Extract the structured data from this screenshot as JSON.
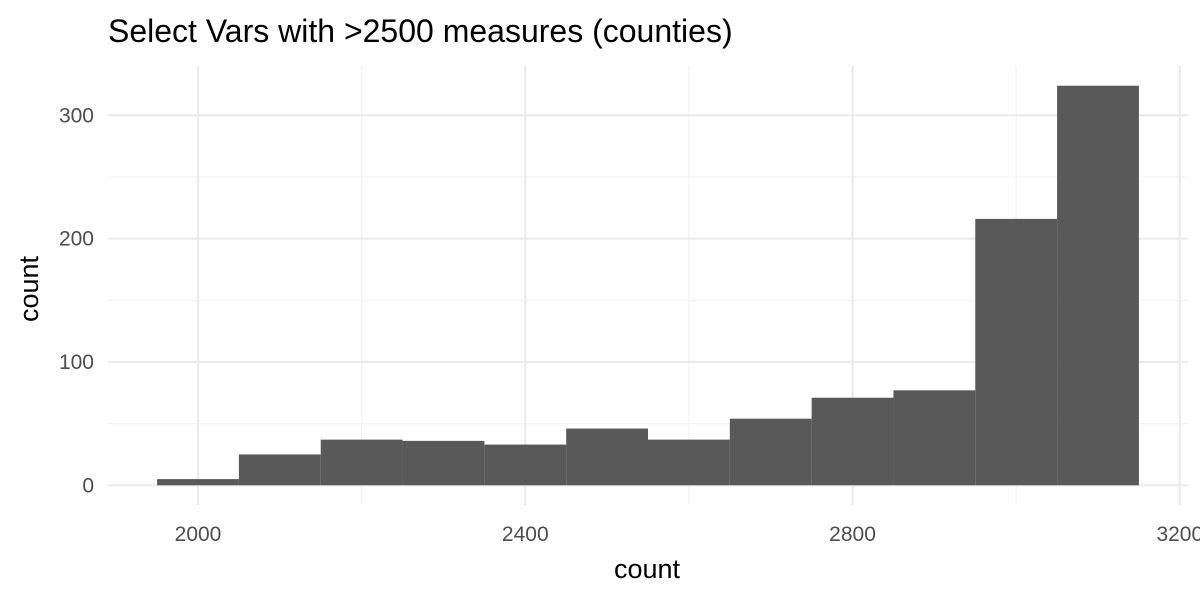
{
  "chart_data": {
    "type": "bar",
    "title": "Select Vars with >2500 measures (counties)",
    "xlabel": "count",
    "ylabel": "count",
    "bin_width": 100,
    "bins": [
      {
        "x0": 1950,
        "x1": 2050,
        "count": 5
      },
      {
        "x0": 2050,
        "x1": 2150,
        "count": 25
      },
      {
        "x0": 2150,
        "x1": 2250,
        "count": 37
      },
      {
        "x0": 2250,
        "x1": 2350,
        "count": 36
      },
      {
        "x0": 2350,
        "x1": 2450,
        "count": 33
      },
      {
        "x0": 2450,
        "x1": 2550,
        "count": 46
      },
      {
        "x0": 2550,
        "x1": 2650,
        "count": 37
      },
      {
        "x0": 2650,
        "x1": 2750,
        "count": 54
      },
      {
        "x0": 2750,
        "x1": 2850,
        "count": 71
      },
      {
        "x0": 2850,
        "x1": 2950,
        "count": 77
      },
      {
        "x0": 2950,
        "x1": 3050,
        "count": 216
      },
      {
        "x0": 3050,
        "x1": 3150,
        "count": 324
      }
    ],
    "x_ticks": [
      2000,
      2400,
      2800,
      3200
    ],
    "x_tick_labels": [
      "2000",
      "2400",
      "2800",
      "3200"
    ],
    "y_ticks": [
      0,
      100,
      200,
      300
    ],
    "y_tick_labels": [
      "0",
      "100",
      "200",
      "300"
    ],
    "xlim": [
      1890,
      3210
    ],
    "ylim": [
      -16,
      340
    ],
    "grid": true,
    "bar_color": "#595959",
    "background_color": "#ffffff",
    "grid_color": "#ebebeb"
  }
}
